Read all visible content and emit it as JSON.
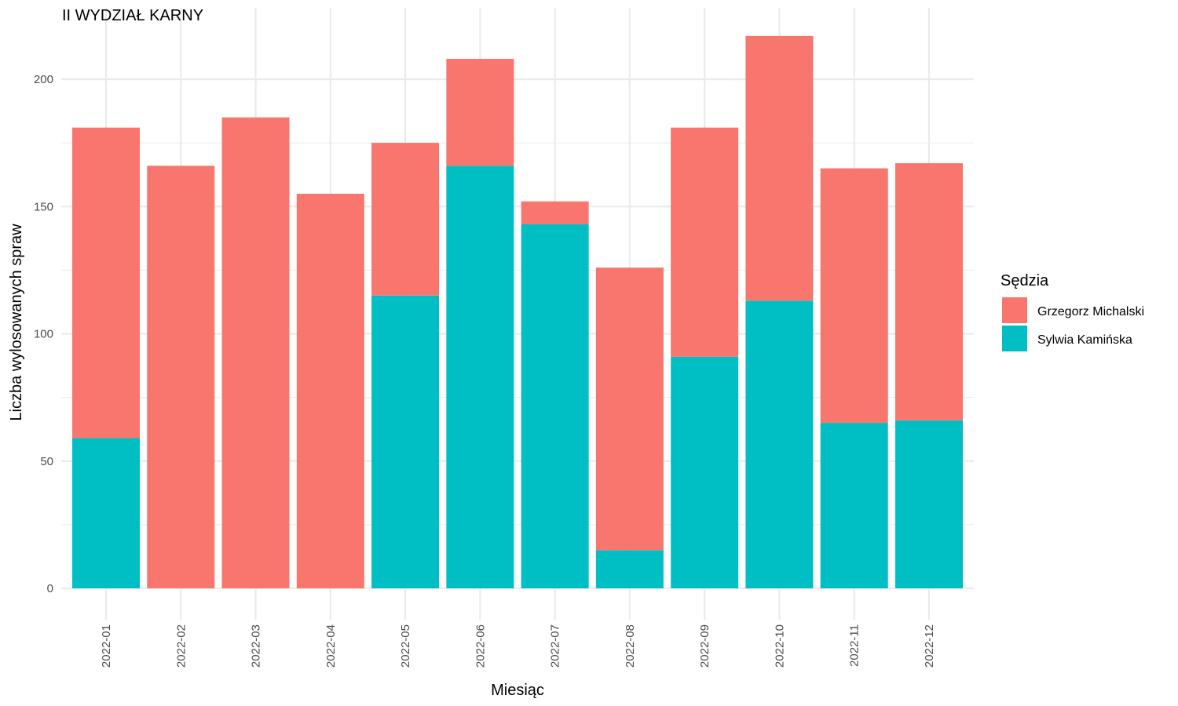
{
  "chart_data": {
    "type": "bar",
    "stacked": true,
    "title": "II WYDZIAŁ KARNY",
    "xlabel": "Miesiąc",
    "ylabel": "Liczba wylosowanych spraw",
    "ylim": [
      0,
      225
    ],
    "y_ticks": [
      0,
      50,
      100,
      150,
      200
    ],
    "grid": true,
    "legend_position": "right",
    "legend_title": "Sędzia",
    "categories": [
      "2022-01",
      "2022-02",
      "2022-03",
      "2022-04",
      "2022-05",
      "2022-06",
      "2022-07",
      "2022-08",
      "2022-09",
      "2022-10",
      "2022-11",
      "2022-12"
    ],
    "series": [
      {
        "name": "Grzegorz Michalski",
        "color": "#F8766D",
        "values": [
          122,
          166,
          185,
          155,
          60,
          42,
          9,
          111,
          90,
          104,
          100,
          101
        ]
      },
      {
        "name": "Sylwia Kamińska",
        "color": "#00BFC4",
        "values": [
          59,
          0,
          0,
          0,
          115,
          166,
          143,
          15,
          91,
          113,
          65,
          66
        ]
      }
    ],
    "stack_order": [
      "Sylwia Kamińska",
      "Grzegorz Michalski"
    ]
  }
}
